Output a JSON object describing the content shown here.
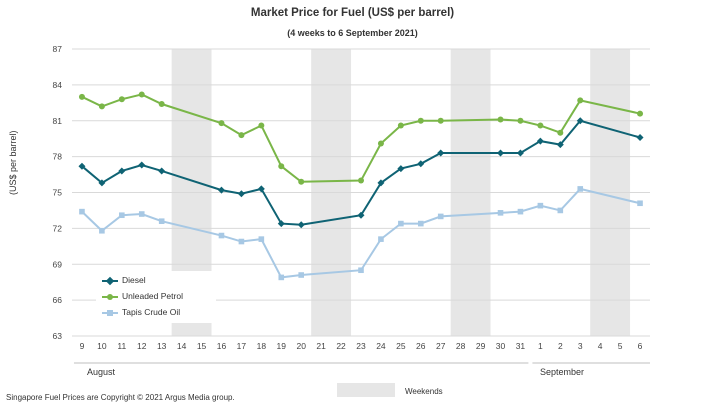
{
  "chart_data": {
    "type": "line",
    "title": "Market Price for Fuel (US$ per barrel)",
    "subtitle": "(4 weeks to 6 September 2021)",
    "ylabel": "(US$ per barrel)",
    "ylim": [
      63,
      87
    ],
    "yticks": [
      63,
      66,
      69,
      72,
      75,
      78,
      81,
      84,
      87
    ],
    "categories": [
      "9",
      "10",
      "11",
      "12",
      "13",
      "14",
      "15",
      "16",
      "17",
      "18",
      "19",
      "20",
      "21",
      "22",
      "23",
      "24",
      "25",
      "26",
      "27",
      "28",
      "29",
      "30",
      "31",
      "1",
      "2",
      "3",
      "4",
      "5",
      "6"
    ],
    "month_labels": [
      "August",
      "September"
    ],
    "weekend_pairs": [
      [
        "14",
        "15"
      ],
      [
        "21",
        "22"
      ],
      [
        "28",
        "29"
      ],
      [
        "4",
        "5"
      ]
    ],
    "weekend_label": "Weekends",
    "series": [
      {
        "name": "Diesel",
        "color": "#0f6374",
        "marker": "diamond",
        "values": [
          77.2,
          75.8,
          76.8,
          77.3,
          76.8,
          null,
          null,
          75.2,
          74.9,
          75.3,
          72.4,
          72.3,
          null,
          null,
          73.1,
          75.8,
          77.0,
          77.4,
          78.3,
          null,
          null,
          78.3,
          78.3,
          79.3,
          79.0,
          81.0,
          null,
          null,
          79.6
        ]
      },
      {
        "name": "Unleaded Petrol",
        "color": "#7ab648",
        "marker": "circle",
        "values": [
          83.0,
          82.2,
          82.8,
          83.2,
          82.4,
          null,
          null,
          80.8,
          79.8,
          80.6,
          77.2,
          75.9,
          null,
          null,
          76.0,
          79.1,
          80.6,
          81.0,
          81.0,
          null,
          null,
          81.1,
          81.0,
          80.6,
          80.0,
          82.7,
          null,
          null,
          81.6
        ]
      },
      {
        "name": "Tapis Crude Oil",
        "color": "#a7c8e4",
        "marker": "square",
        "values": [
          73.4,
          71.8,
          73.1,
          73.2,
          72.6,
          null,
          null,
          71.4,
          70.9,
          71.1,
          67.9,
          68.1,
          null,
          null,
          68.5,
          71.1,
          72.4,
          72.4,
          73.0,
          null,
          null,
          73.3,
          73.4,
          73.9,
          73.5,
          75.3,
          null,
          null,
          74.1
        ]
      }
    ]
  },
  "footer": "Singapore Fuel Prices are Copyright © 2021 Argus Media group."
}
